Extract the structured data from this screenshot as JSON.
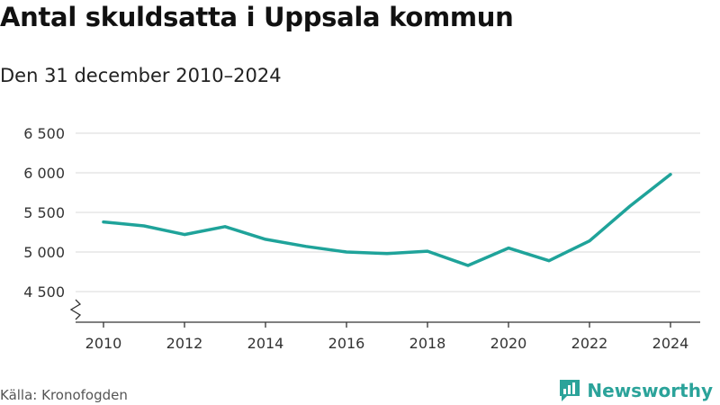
{
  "header": {
    "title": "Antal skuldsatta i Uppsala kommun",
    "subtitle": "Den 31 december 2010–2024"
  },
  "footer": {
    "source": "Källa: Kronofogden",
    "brand": "Newsworthy",
    "brand_icon": "bar-chart-logo-icon"
  },
  "colors": {
    "line": "#1fa39a",
    "grid": "#d9d9d9",
    "axis": "#333333",
    "brand": "#2ba39a"
  },
  "chart_data": {
    "type": "line",
    "x": [
      2010,
      2011,
      2012,
      2013,
      2014,
      2015,
      2016,
      2017,
      2018,
      2019,
      2020,
      2021,
      2022,
      2023,
      2024
    ],
    "series": [
      {
        "values": [
          5380,
          5330,
          5220,
          5320,
          5160,
          5070,
          5000,
          4980,
          5010,
          4830,
          5050,
          4890,
          5140,
          5580,
          5980
        ]
      }
    ],
    "x_ticks": [
      "2010",
      "2012",
      "2014",
      "2016",
      "2018",
      "2020",
      "2022",
      "2024"
    ],
    "y_ticks": [
      {
        "value": 4500,
        "label": "4 500"
      },
      {
        "value": 5000,
        "label": "5 000"
      },
      {
        "value": 5500,
        "label": "5 500"
      },
      {
        "value": 6000,
        "label": "6 000"
      },
      {
        "value": 6500,
        "label": "6 500"
      }
    ],
    "xlim": [
      2010,
      2024
    ],
    "ylim": [
      4500,
      6500
    ],
    "ylim_axis_break": true,
    "grid": "horizontal",
    "legend": "none"
  }
}
